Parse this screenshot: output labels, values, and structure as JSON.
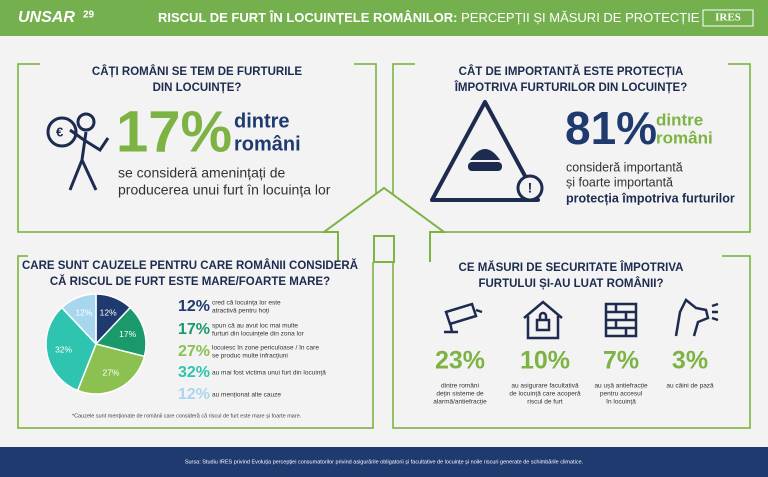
{
  "header": {
    "logo": "UNSAR",
    "logo_years": "29",
    "title_bold": "RISCUL DE FURT ÎN LOCUINȚELE ROMÂNILOR:",
    "title_rest": "PERCEPȚII ȘI MĂSURI DE PROTECȚIE",
    "partner": "IRES"
  },
  "fear": {
    "title": [
      "CÂȚI ROMÂNI SE TEM DE FURTURILE",
      "DIN LOCUINȚE?"
    ],
    "percent": "17%",
    "group": [
      "dintre",
      "români"
    ],
    "description": [
      "se consideră amenințați de",
      "producerea unui furt în locuința lor"
    ]
  },
  "importance": {
    "title": [
      "CÂT DE IMPORTANTĂ ESTE PROTECȚIA",
      "ÎMPOTRIVA FURTURILOR DIN LOCUINȚE?"
    ],
    "percent": "81%",
    "group": [
      "dintre",
      "români"
    ],
    "description": [
      "consideră importantă",
      "și foarte importantă"
    ],
    "description_bold": "protecția împotriva furturilor"
  },
  "chart_data": {
    "type": "pie",
    "title": [
      "CARE SUNT CAUZELE PENTRU CARE ROMÂNII CONSIDERĂ",
      "CĂ RISCUL DE FURT ESTE MARE/FOARTE MARE?"
    ],
    "categories": [
      [
        "cred că locuința lor este",
        "atractivă pentru hoți"
      ],
      [
        "spun că au avut loc mai multe",
        "furturi din locuințele din zona lor"
      ],
      [
        "locuiesc în zone periculoase / în care",
        "se produc multe infracțiuni"
      ],
      [
        "au mai fost victima unui furt din locuință"
      ],
      [
        "au menționat alte cauze"
      ]
    ],
    "values": [
      12,
      17,
      27,
      32,
      12
    ],
    "value_labels": [
      "12%",
      "17%",
      "27%",
      "32%",
      "12%"
    ],
    "colors": [
      "#1f3a6e",
      "#1a9a6a",
      "#8cc152",
      "#2ec4b0",
      "#a9d6ef"
    ],
    "note": "*Cauzele sunt menționate de românii care consideră că riscul de furt este mare și foarte mare."
  },
  "measures": {
    "title": [
      "CE MĂSURI DE SECURITATE ÎMPOTRIVA",
      "FURTULUI ȘI-AU LUAT ROMÂNII?"
    ],
    "items": [
      {
        "percent": "23%",
        "description": [
          "dintre români",
          "dețin sisteme de",
          "alarmă/antiefracție"
        ]
      },
      {
        "percent": "10%",
        "description": [
          "au asigurare facultativă",
          "de locuință care acoperă",
          "riscul de furt"
        ]
      },
      {
        "percent": "7%",
        "description": [
          "au ușă antiefracție",
          "pentru accesul",
          "în locuință"
        ]
      },
      {
        "percent": "3%",
        "description": [
          "au câini de pază"
        ]
      }
    ]
  },
  "footer": {
    "source": "Sursa: Studiu IRES privind Evoluția percepției consumatorilor privind asigurările obligatorii și facultative de locuințe și noile riscuri generate de schimbările climatice."
  }
}
